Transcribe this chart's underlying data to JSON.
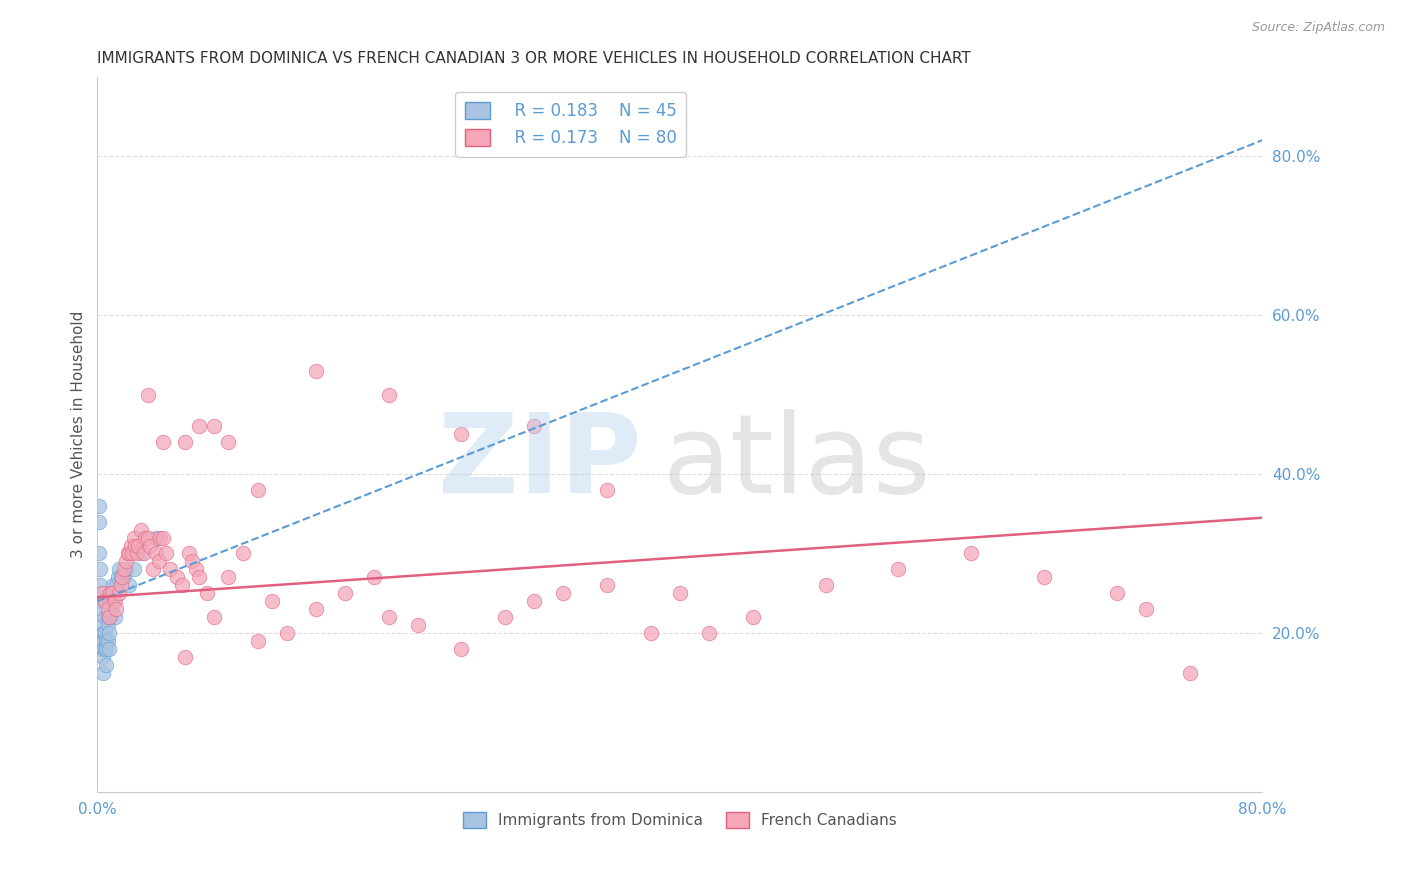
{
  "title": "IMMIGRANTS FROM DOMINICA VS FRENCH CANADIAN 3 OR MORE VEHICLES IN HOUSEHOLD CORRELATION CHART",
  "source": "Source: ZipAtlas.com",
  "ylabel": "3 or more Vehicles in Household",
  "xlim": [
    0.0,
    0.8
  ],
  "ylim": [
    0.0,
    0.9
  ],
  "xticks": [
    0.0,
    0.1,
    0.2,
    0.3,
    0.4,
    0.5,
    0.6,
    0.7,
    0.8
  ],
  "xticklabels": [
    "0.0%",
    "",
    "",
    "",
    "",
    "",
    "",
    "",
    "80.0%"
  ],
  "yticks_right": [
    0.2,
    0.4,
    0.6,
    0.8
  ],
  "yticklabels_right": [
    "20.0%",
    "40.0%",
    "60.0%",
    "80.0%"
  ],
  "legend1_R": "0.183",
  "legend1_N": "45",
  "legend2_R": "0.173",
  "legend2_N": "80",
  "blue_scatter_color": "#a8c4e0",
  "blue_edge_color": "#5b9bd5",
  "pink_scatter_color": "#f4a7b9",
  "pink_edge_color": "#e06080",
  "blue_line_color": "#5b9bd5",
  "pink_line_color": "#e06080",
  "dominica_trend_x": [
    0.0,
    0.8
  ],
  "dominica_trend_y": [
    0.24,
    0.82
  ],
  "french_trend_x": [
    0.0,
    0.8
  ],
  "french_trend_y": [
    0.245,
    0.345
  ],
  "dominica_x": [
    0.001,
    0.001,
    0.001,
    0.002,
    0.002,
    0.002,
    0.003,
    0.003,
    0.003,
    0.003,
    0.004,
    0.004,
    0.004,
    0.004,
    0.004,
    0.005,
    0.005,
    0.005,
    0.005,
    0.006,
    0.006,
    0.006,
    0.007,
    0.007,
    0.007,
    0.008,
    0.008,
    0.009,
    0.009,
    0.01,
    0.01,
    0.011,
    0.011,
    0.012,
    0.012,
    0.013,
    0.014,
    0.015,
    0.016,
    0.018,
    0.02,
    0.022,
    0.025,
    0.03,
    0.04
  ],
  "dominica_y": [
    0.36,
    0.34,
    0.3,
    0.28,
    0.26,
    0.24,
    0.25,
    0.23,
    0.21,
    0.19,
    0.2,
    0.19,
    0.18,
    0.17,
    0.15,
    0.24,
    0.22,
    0.2,
    0.18,
    0.19,
    0.18,
    0.16,
    0.22,
    0.21,
    0.19,
    0.2,
    0.18,
    0.24,
    0.22,
    0.25,
    0.23,
    0.26,
    0.24,
    0.25,
    0.22,
    0.26,
    0.27,
    0.28,
    0.27,
    0.27,
    0.28,
    0.26,
    0.28,
    0.3,
    0.32
  ],
  "french_x": [
    0.003,
    0.005,
    0.007,
    0.008,
    0.009,
    0.01,
    0.012,
    0.013,
    0.015,
    0.016,
    0.017,
    0.018,
    0.02,
    0.021,
    0.022,
    0.023,
    0.024,
    0.025,
    0.026,
    0.027,
    0.028,
    0.03,
    0.032,
    0.033,
    0.035,
    0.036,
    0.038,
    0.04,
    0.042,
    0.043,
    0.045,
    0.047,
    0.05,
    0.055,
    0.058,
    0.06,
    0.063,
    0.065,
    0.068,
    0.07,
    0.075,
    0.08,
    0.09,
    0.1,
    0.11,
    0.12,
    0.13,
    0.15,
    0.17,
    0.19,
    0.2,
    0.22,
    0.25,
    0.28,
    0.3,
    0.32,
    0.35,
    0.38,
    0.4,
    0.42,
    0.45,
    0.5,
    0.55,
    0.6,
    0.65,
    0.7,
    0.72,
    0.75,
    0.035,
    0.045,
    0.06,
    0.07,
    0.08,
    0.09,
    0.11,
    0.15,
    0.2,
    0.25,
    0.3,
    0.35
  ],
  "french_y": [
    0.25,
    0.24,
    0.23,
    0.22,
    0.25,
    0.25,
    0.24,
    0.23,
    0.25,
    0.26,
    0.27,
    0.28,
    0.29,
    0.3,
    0.3,
    0.31,
    0.3,
    0.32,
    0.31,
    0.3,
    0.31,
    0.33,
    0.3,
    0.32,
    0.32,
    0.31,
    0.28,
    0.3,
    0.29,
    0.32,
    0.32,
    0.3,
    0.28,
    0.27,
    0.26,
    0.17,
    0.3,
    0.29,
    0.28,
    0.27,
    0.25,
    0.22,
    0.27,
    0.3,
    0.19,
    0.24,
    0.2,
    0.23,
    0.25,
    0.27,
    0.22,
    0.21,
    0.18,
    0.22,
    0.24,
    0.25,
    0.26,
    0.2,
    0.25,
    0.2,
    0.22,
    0.26,
    0.28,
    0.3,
    0.27,
    0.25,
    0.23,
    0.15,
    0.5,
    0.44,
    0.44,
    0.46,
    0.46,
    0.44,
    0.38,
    0.53,
    0.5,
    0.45,
    0.46,
    0.38
  ],
  "grid_color": "#dddddd",
  "bg_color": "#ffffff",
  "tick_color": "#5b9bd5",
  "title_color": "#333333",
  "label_color": "#555555",
  "source_color": "#999999"
}
